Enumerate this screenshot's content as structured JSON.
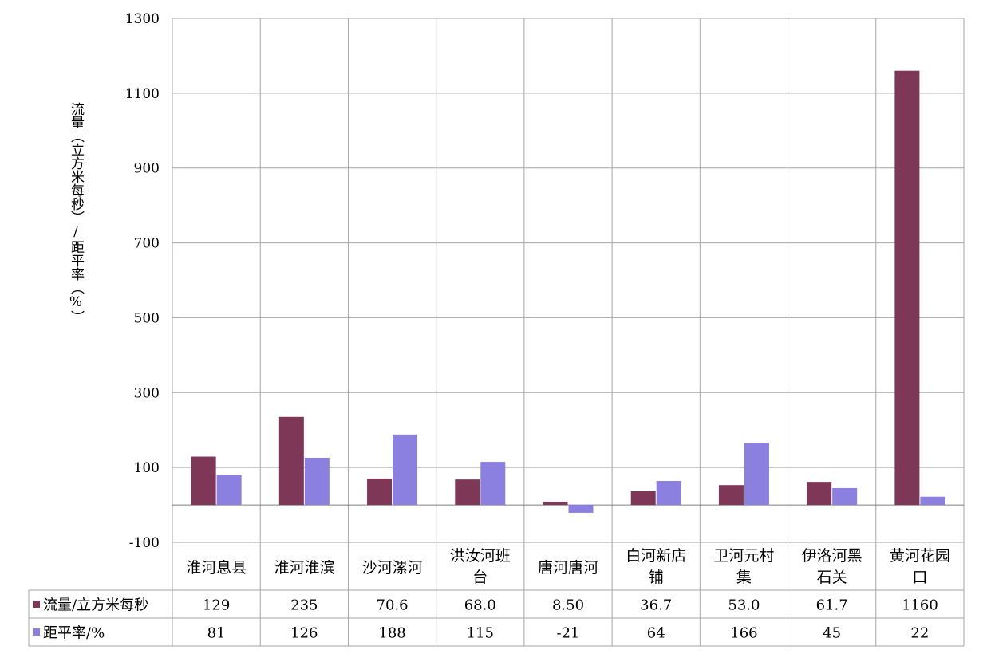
{
  "chart_data": {
    "type": "bar",
    "ylabel": "流量（立方米每秒）/距平率（%）",
    "ylim": [
      -100,
      1300
    ],
    "yticks": [
      -100,
      100,
      300,
      500,
      700,
      900,
      1100,
      1300
    ],
    "grid": true,
    "legend": "data-table",
    "categories": [
      [
        "淮河息县"
      ],
      [
        "淮河淮滨"
      ],
      [
        "沙河漯河"
      ],
      [
        "洪汝河班",
        "台"
      ],
      [
        "唐河唐河"
      ],
      [
        "白河新店",
        "铺"
      ],
      [
        "卫河元村",
        "集"
      ],
      [
        "伊洛河黑",
        "石关"
      ],
      [
        "黄河花园",
        "口"
      ]
    ],
    "series": [
      {
        "name": "流量/立方米每秒",
        "color": "#7f3757",
        "values": [
          129,
          235,
          70.6,
          68.0,
          8.5,
          36.7,
          53.0,
          61.7,
          1160
        ],
        "labels": [
          "129",
          "235",
          "70.6",
          "68.0",
          "8.50",
          "36.7",
          "53.0",
          "61.7",
          "1160"
        ]
      },
      {
        "name": "距平率/%",
        "color": "#8b7fe0",
        "values": [
          81,
          126,
          188,
          115,
          -21,
          64,
          166,
          45,
          22
        ],
        "labels": [
          "81",
          "126",
          "188",
          "115",
          "-21",
          "64",
          "166",
          "45",
          "22"
        ]
      }
    ]
  }
}
